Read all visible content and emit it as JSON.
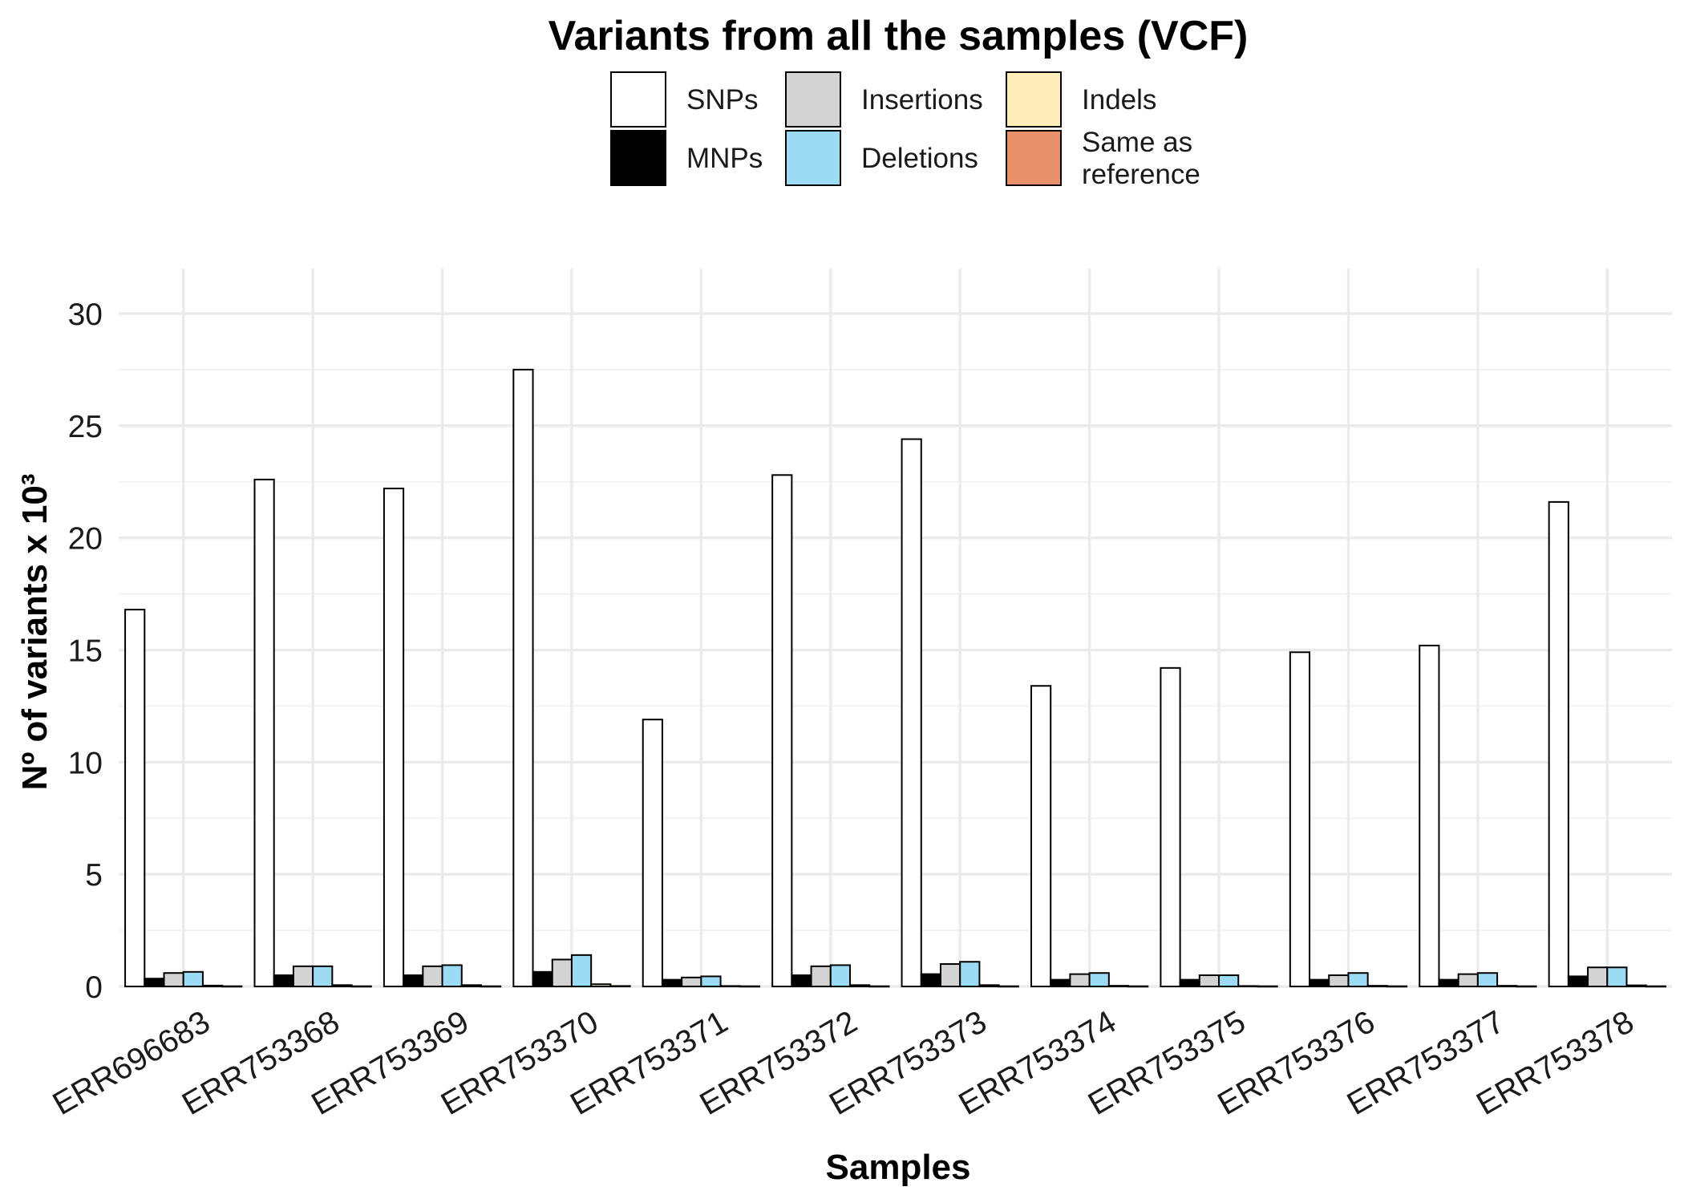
{
  "chart_data": {
    "type": "bar",
    "title": "Variants from all the samples (VCF)",
    "xlabel": "Samples",
    "ylabel": "Nº of variants x 10³",
    "ylim": [
      0,
      32
    ],
    "yticks": [
      0,
      5,
      10,
      15,
      20,
      25,
      30
    ],
    "grid": true,
    "legend_position": "top",
    "categories": [
      "ERR696683",
      "ERR753368",
      "ERR753369",
      "ERR753370",
      "ERR753371",
      "ERR753372",
      "ERR753373",
      "ERR753374",
      "ERR753375",
      "ERR753376",
      "ERR753377",
      "ERR753378"
    ],
    "series": [
      {
        "name": "SNPs",
        "color": "#FFFFFF",
        "values": [
          16.8,
          22.6,
          22.2,
          27.5,
          11.9,
          22.8,
          24.4,
          13.4,
          14.2,
          14.9,
          15.2,
          21.6
        ]
      },
      {
        "name": "MNPs",
        "color": "#000000",
        "values": [
          0.35,
          0.5,
          0.5,
          0.65,
          0.3,
          0.5,
          0.55,
          0.3,
          0.3,
          0.3,
          0.3,
          0.45
        ]
      },
      {
        "name": "Insertions",
        "color": "#D3D3D3",
        "values": [
          0.6,
          0.9,
          0.9,
          1.2,
          0.4,
          0.9,
          1.0,
          0.55,
          0.5,
          0.5,
          0.55,
          0.85
        ]
      },
      {
        "name": "Deletions",
        "color": "#9CDBF4",
        "values": [
          0.65,
          0.9,
          0.95,
          1.4,
          0.45,
          0.95,
          1.1,
          0.6,
          0.5,
          0.6,
          0.6,
          0.85
        ]
      },
      {
        "name": "Indels",
        "color": "#FFEDBA",
        "values": [
          0.04,
          0.06,
          0.06,
          0.1,
          0.02,
          0.06,
          0.06,
          0.03,
          0.02,
          0.03,
          0.03,
          0.05
        ]
      },
      {
        "name": "Same as reference",
        "color": "#EA916C",
        "values": [
          0.01,
          0.01,
          0.01,
          0.02,
          0.01,
          0.01,
          0.01,
          0.01,
          0.01,
          0.01,
          0.01,
          0.01
        ]
      }
    ]
  }
}
